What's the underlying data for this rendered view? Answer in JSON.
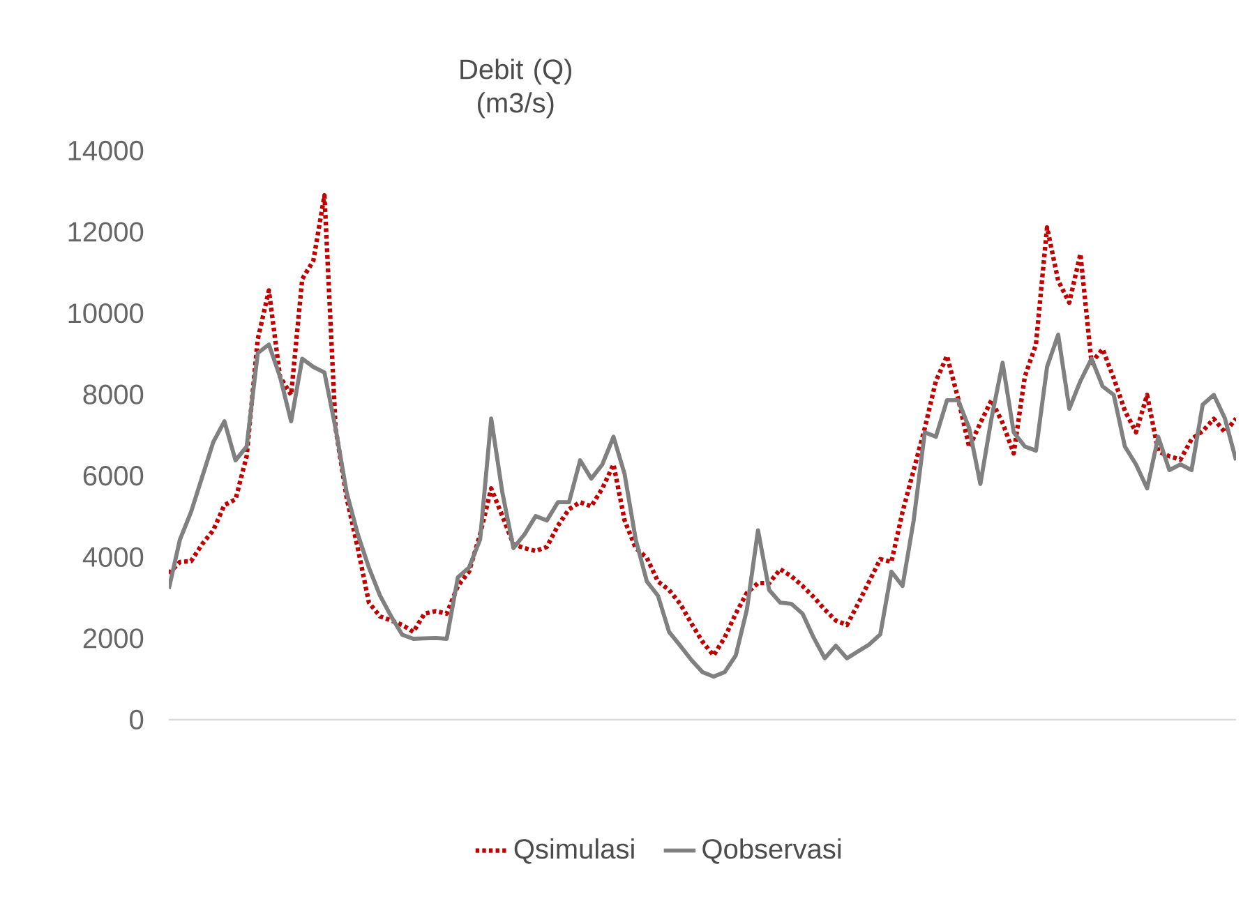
{
  "chart_data": {
    "type": "line",
    "ylabel": "Debit (Q) (m3/s)",
    "categories": [
      null,
      null,
      null,
      null,
      null,
      null,
      null,
      null,
      null,
      null,
      null,
      null,
      null,
      null,
      null,
      null,
      null,
      null,
      null,
      null,
      null,
      null,
      null,
      null,
      null,
      null,
      null,
      null,
      null,
      null,
      null,
      null,
      null,
      null,
      null,
      null,
      null,
      null,
      null,
      null,
      null,
      null,
      null,
      null,
      null,
      null,
      null,
      null,
      null,
      null,
      null,
      null,
      null,
      null,
      null,
      null,
      null,
      null,
      null,
      null,
      null,
      null,
      null,
      null,
      null,
      null,
      null,
      null,
      null,
      null,
      null,
      null,
      null,
      null,
      null,
      null,
      null,
      null,
      null,
      null,
      null,
      null,
      null,
      null,
      null,
      null,
      null,
      null,
      null,
      null,
      null,
      null,
      null,
      null,
      null,
      null,
      null
    ],
    "series": [
      {
        "name": "Qsimulasi",
        "color": "#c00000",
        "line_style": "dotted",
        "values": [
          3600,
          3880,
          3900,
          4320,
          4660,
          5280,
          5420,
          6480,
          9360,
          10560,
          8440,
          7990,
          10840,
          11290,
          12900,
          7170,
          5450,
          4220,
          2880,
          2540,
          2440,
          2330,
          2160,
          2610,
          2670,
          2610,
          3290,
          3640,
          4560,
          5690,
          5010,
          4320,
          4220,
          4150,
          4250,
          4770,
          5180,
          5350,
          5250,
          5690,
          6280,
          4900,
          4220,
          3980,
          3400,
          3190,
          2850,
          2370,
          1920,
          1580,
          2020,
          2610,
          3120,
          3360,
          3360,
          3700,
          3530,
          3290,
          3020,
          2710,
          2440,
          2330,
          2850,
          3400,
          3950,
          3880,
          5110,
          6140,
          7170,
          8330,
          8950,
          7900,
          6700,
          7300,
          7860,
          7300,
          6550,
          8440,
          9230,
          12110,
          10800,
          10260,
          11460,
          8780,
          9120,
          8400,
          7600,
          7070,
          7990,
          6600,
          6480,
          6400,
          6900,
          7100,
          7400,
          7070,
          7410
        ]
      },
      {
        "name": "Qobservasi",
        "color": "#808080",
        "line_style": "solid",
        "values": [
          3220,
          4430,
          5110,
          5970,
          6830,
          7340,
          6380,
          6720,
          9020,
          9230,
          8440,
          7340,
          8880,
          8680,
          8540,
          7170,
          5590,
          4560,
          3740,
          3050,
          2540,
          2090,
          1990,
          2000,
          2010,
          1990,
          3500,
          3740,
          4430,
          7410,
          5590,
          4220,
          4560,
          5010,
          4900,
          5350,
          5350,
          6380,
          5930,
          6280,
          6960,
          6040,
          4430,
          3400,
          3050,
          2160,
          1820,
          1470,
          1170,
          1060,
          1170,
          1580,
          2710,
          4660,
          3190,
          2880,
          2850,
          2610,
          2020,
          1510,
          1820,
          1510,
          1680,
          1850,
          2100,
          3640,
          3290,
          4900,
          7070,
          6960,
          7860,
          7860,
          7170,
          5800,
          7410,
          8780,
          7070,
          6720,
          6620,
          8680,
          9470,
          7650,
          8330,
          8880,
          8200,
          7990,
          6720,
          6280,
          5690,
          6960,
          6140,
          6280,
          6140,
          7750,
          7990,
          7410,
          6380
        ]
      }
    ],
    "ylim": [
      0,
      14000
    ],
    "yticks": [
      0,
      2000,
      4000,
      6000,
      8000,
      10000,
      12000,
      14000
    ],
    "grid": false,
    "legend": "bottom",
    "marker": "none",
    "tick_labels": "y"
  }
}
